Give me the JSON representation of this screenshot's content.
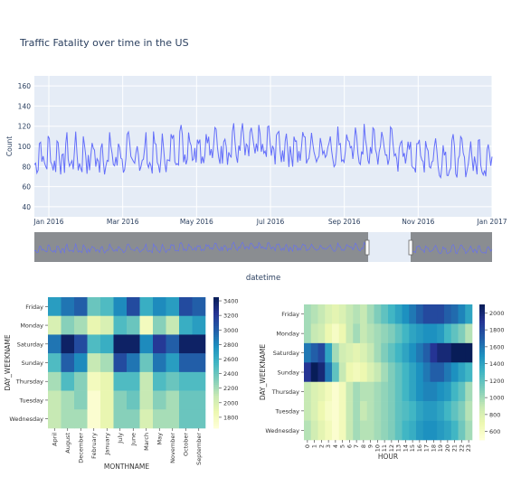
{
  "chart_data": [
    {
      "type": "line",
      "title": "Traffic Fatality over time in the US",
      "xlabel": "datetime",
      "ylabel": "Count",
      "ylim": [
        30,
        170
      ],
      "yticks": [
        40,
        60,
        80,
        100,
        120,
        140,
        160
      ],
      "xticks": [
        "Jan 2016",
        "Mar 2016",
        "May 2016",
        "Jul 2016",
        "Sep 2016",
        "Nov 2016",
        "Jan 2017"
      ],
      "x_range": [
        "2016-01-01",
        "2016-12-31"
      ],
      "line_color": "#636efa",
      "plot_bg": "#e5ecf6",
      "range_slider": {
        "visible": true,
        "selected": [
          "2016-10-10",
          "2016-11-05"
        ]
      }
    },
    {
      "type": "heatmap",
      "xlabel": "MONTHNAME",
      "ylabel": "DAY_WEEKNAME",
      "x": [
        "April",
        "August",
        "December",
        "February",
        "January",
        "July",
        "June",
        "March",
        "May",
        "November",
        "October",
        "September"
      ],
      "y": [
        "Friday",
        "Monday",
        "Saturday",
        "Sunday",
        "Thursday",
        "Tuesday",
        "Wednesday"
      ],
      "z": [
        [
          2700,
          2900,
          3000,
          2400,
          2500,
          2800,
          3100,
          2600,
          2800,
          2700,
          3100,
          3000
        ],
        [
          2000,
          2300,
          2200,
          1900,
          2000,
          2500,
          2400,
          1800,
          2300,
          2100,
          2600,
          2700
        ],
        [
          2900,
          3400,
          3100,
          2500,
          2600,
          3400,
          3400,
          2800,
          3200,
          3000,
          3400,
          3400
        ],
        [
          2500,
          3000,
          2800,
          2100,
          2200,
          3100,
          2900,
          2400,
          2900,
          2700,
          3000,
          3000
        ],
        [
          2200,
          2500,
          2300,
          1800,
          1900,
          2500,
          2500,
          2100,
          2500,
          2400,
          2500,
          2500
        ],
        [
          2100,
          2200,
          2300,
          1700,
          1900,
          2300,
          2400,
          2100,
          2300,
          2200,
          2400,
          2400
        ],
        [
          2100,
          2200,
          2200,
          1700,
          1900,
          2300,
          2300,
          2000,
          2200,
          2200,
          2400,
          2400
        ]
      ],
      "colorbar_ticks": [
        1800,
        2000,
        2200,
        2400,
        2600,
        2800,
        3000,
        3200,
        3400
      ],
      "zlim": [
        1650,
        3450
      ],
      "colormap": "YlGnBu"
    },
    {
      "type": "heatmap",
      "xlabel": "HOUR",
      "ylabel": "DAY_WEEKNAME",
      "x": [
        "0",
        "1",
        "2",
        "3",
        "4",
        "5",
        "6",
        "7",
        "8",
        "9",
        "10",
        "11",
        "12",
        "13",
        "14",
        "15",
        "16",
        "17",
        "18",
        "19",
        "20",
        "21",
        "22",
        "23"
      ],
      "y": [
        "Friday",
        "Monday",
        "Saturday",
        "Sunday",
        "Thursday",
        "Tuesday",
        "Wednesday"
      ],
      "z": [
        [
          1000,
          950,
          900,
          800,
          750,
          800,
          900,
          950,
          900,
          1000,
          1100,
          1200,
          1300,
          1400,
          1500,
          1600,
          1700,
          1800,
          1800,
          1800,
          1700,
          1650,
          1550,
          1400
        ],
        [
          1000,
          900,
          850,
          700,
          600,
          700,
          900,
          1000,
          900,
          950,
          1000,
          1050,
          1100,
          1200,
          1300,
          1400,
          1450,
          1500,
          1500,
          1450,
          1300,
          1200,
          1100,
          950
        ],
        [
          1600,
          1700,
          1800,
          1400,
          1000,
          850,
          800,
          750,
          800,
          900,
          1000,
          1100,
          1200,
          1300,
          1400,
          1500,
          1600,
          1700,
          1900,
          2000,
          2000,
          2100,
          2100,
          2100
        ],
        [
          1900,
          2100,
          2000,
          1600,
          1200,
          900,
          700,
          650,
          700,
          800,
          900,
          1000,
          1100,
          1200,
          1300,
          1400,
          1500,
          1600,
          1700,
          1700,
          1600,
          1500,
          1400,
          1300
        ],
        [
          900,
          800,
          750,
          650,
          550,
          650,
          900,
          1000,
          950,
          950,
          1000,
          1050,
          1100,
          1200,
          1300,
          1400,
          1500,
          1550,
          1550,
          1500,
          1450,
          1300,
          1200,
          1000
        ],
        [
          900,
          800,
          700,
          600,
          550,
          650,
          900,
          1000,
          900,
          950,
          1000,
          1050,
          1100,
          1200,
          1250,
          1300,
          1400,
          1450,
          1450,
          1400,
          1300,
          1200,
          1100,
          950
        ],
        [
          950,
          850,
          750,
          650,
          550,
          650,
          900,
          1000,
          950,
          950,
          1000,
          1050,
          1100,
          1200,
          1300,
          1350,
          1450,
          1500,
          1500,
          1450,
          1400,
          1300,
          1150,
          1000
        ]
      ],
      "colorbar_ticks": [
        600,
        800,
        1000,
        1200,
        1400,
        1600,
        1800,
        2000
      ],
      "zlim": [
        500,
        2100
      ],
      "colormap": "YlGnBu"
    }
  ]
}
